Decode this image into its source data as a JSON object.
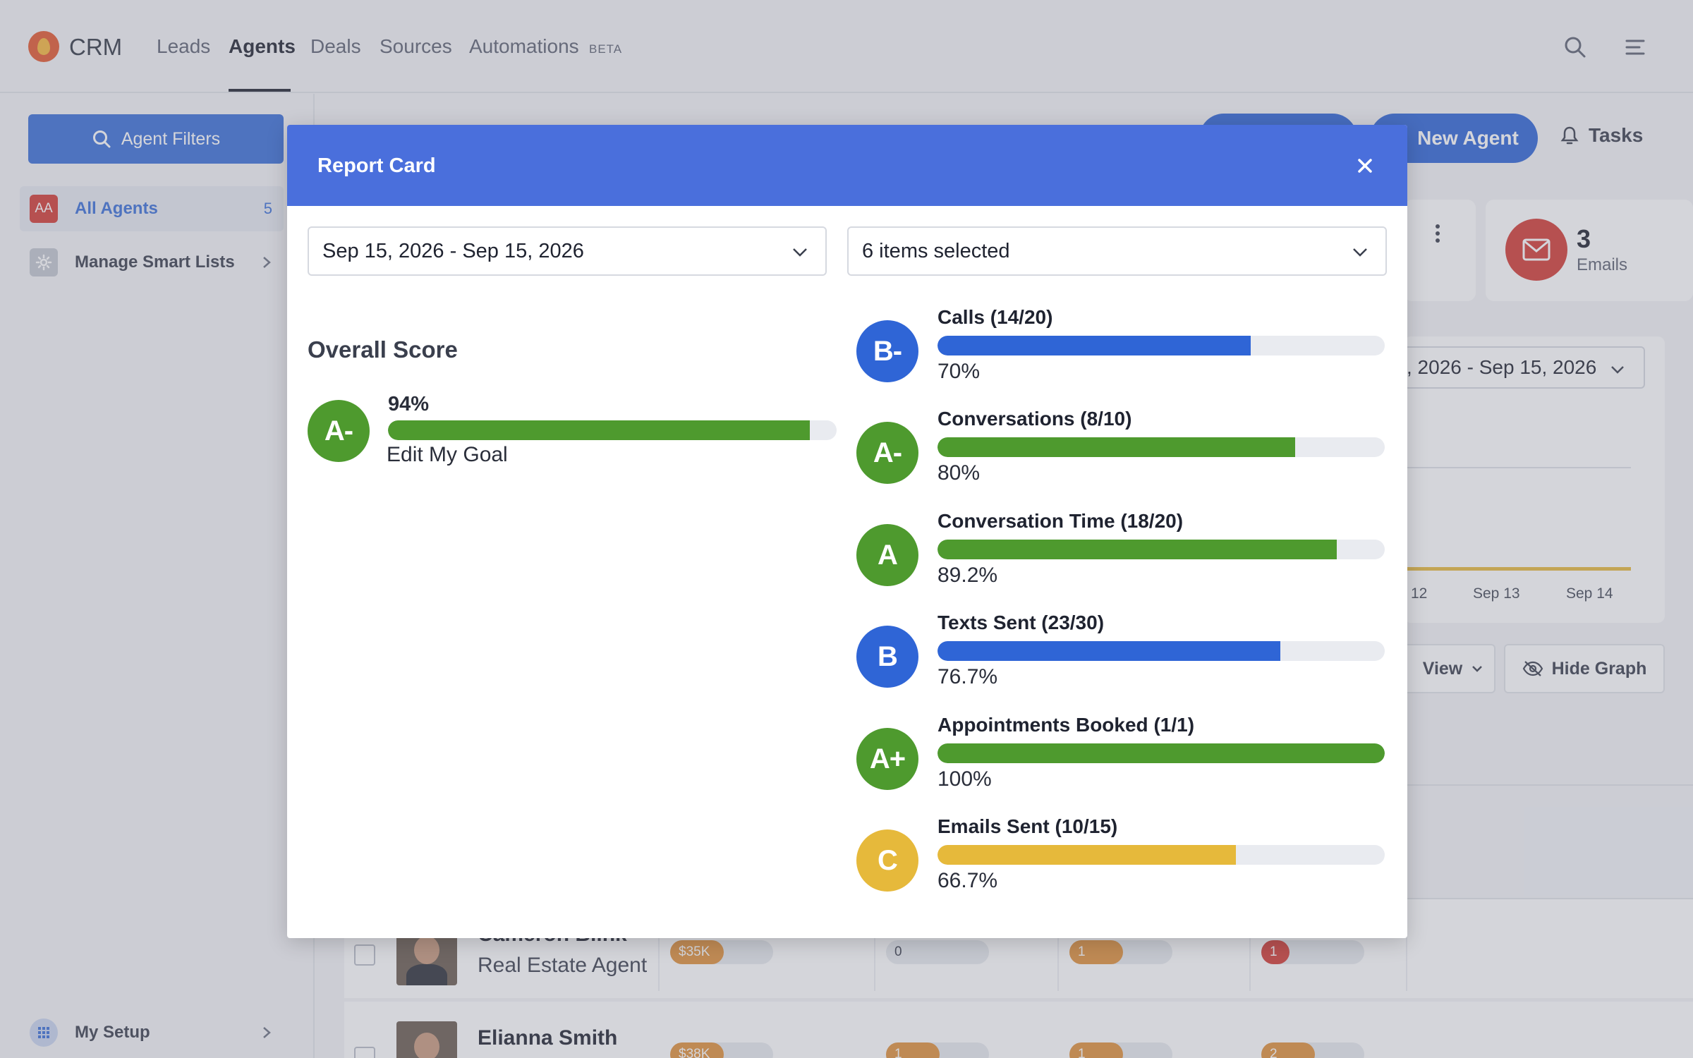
{
  "app": {
    "brand": "CRM",
    "nav": [
      {
        "label": "Leads"
      },
      {
        "label": "Agents"
      },
      {
        "label": "Deals"
      },
      {
        "label": "Sources"
      },
      {
        "label": "Automations"
      }
    ],
    "beta_label": "BETA",
    "active_nav": "Agents"
  },
  "sidebar": {
    "agent_filters_label": "Agent Filters",
    "items": [
      {
        "badge": "AA",
        "label": "All Agents",
        "count": "5"
      },
      {
        "label": "Manage Smart Lists"
      }
    ],
    "setup_label": "My Setup"
  },
  "main": {
    "new_agent_label": "New Agent",
    "tasks_label": "Tasks",
    "emails_count": "3",
    "emails_label": "Emails",
    "graph_date": ", 2026 - Sep 15, 2026",
    "ticks": [
      "12",
      "Sep 13",
      "Sep 14"
    ],
    "view_label": "View",
    "hide_graph_label": "Hide Graph",
    "rows": [
      {
        "name": "Cameron Blink",
        "role": "Real Estate Agent",
        "c1": "$35K",
        "c2": "0",
        "c3": "1",
        "c4": "1"
      },
      {
        "name": "Elianna Smith",
        "role": "",
        "c1": "$38K",
        "c2": "1",
        "c3": "1",
        "c4": "2"
      }
    ]
  },
  "modal": {
    "title": "Report Card",
    "date_range": "Sep 15, 2026 - Sep 15, 2026",
    "items_selected": "6 items selected",
    "overall": {
      "title": "Overall Score",
      "grade": "A-",
      "pct_label": "94%",
      "value": 0.94,
      "edit_goal": "Edit My Goal"
    },
    "metrics": [
      {
        "label": "Calls (14/20)",
        "grade": "B-",
        "pct_label": "70%",
        "value": 0.7,
        "color": "#2f65d6"
      },
      {
        "label": "Conversations (8/10)",
        "grade": "A-",
        "pct_label": "80%",
        "value": 0.8,
        "color": "#4e9a2e"
      },
      {
        "label": "Conversation Time (18/20)",
        "grade": "A",
        "pct_label": "89.2%",
        "value": 0.892,
        "color": "#4e9a2e"
      },
      {
        "label": "Texts Sent (23/30)",
        "grade": "B",
        "pct_label": "76.7%",
        "value": 0.767,
        "color": "#2f65d6"
      },
      {
        "label": "Appointments Booked (1/1)",
        "grade": "A+",
        "pct_label": "100%",
        "value": 1.0,
        "color": "#4e9a2e"
      },
      {
        "label": "Emails Sent (10/15)",
        "grade": "C",
        "pct_label": "66.7%",
        "value": 0.667,
        "color": "#e6b93b"
      }
    ]
  },
  "colors": {
    "accent": "#2f65d6",
    "modal_header": "#4a6fdc",
    "grade_green": "#4e9a2e",
    "grade_blue": "#2f65d6",
    "grade_yellow": "#e6b93b",
    "emails_red": "#d33b34"
  }
}
